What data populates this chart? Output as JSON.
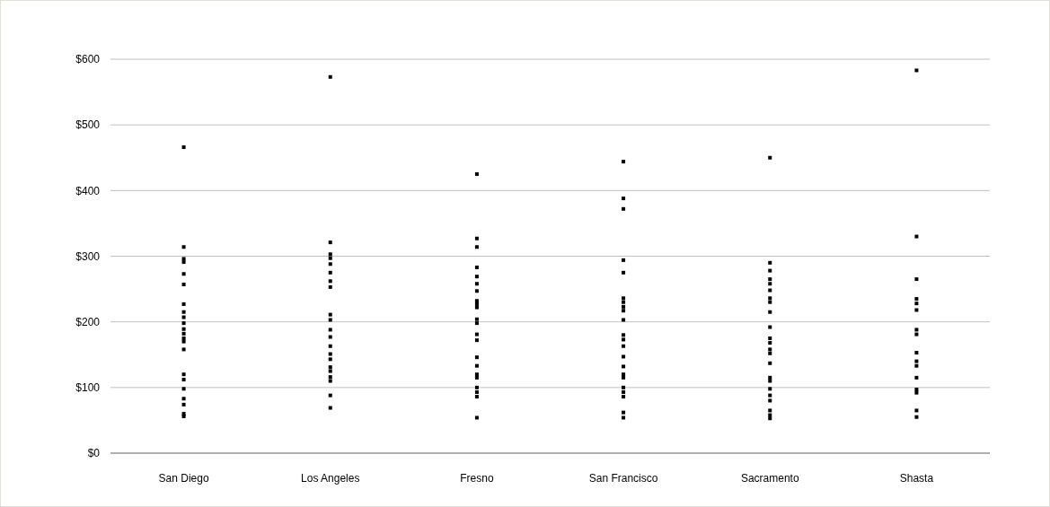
{
  "chart_data": {
    "type": "scatter",
    "categories": [
      "San Diego",
      "Los Angeles",
      "Fresno",
      "San Francisco",
      "Sacramento",
      "Shasta"
    ],
    "series": [
      {
        "color": "#000000",
        "x": [
          "San Diego",
          "San Diego",
          "San Diego",
          "San Diego",
          "San Diego",
          "San Diego",
          "San Diego",
          "San Diego",
          "San Diego",
          "San Diego",
          "San Diego",
          "San Diego",
          "San Diego",
          "San Diego",
          "San Diego",
          "San Diego",
          "San Diego",
          "San Diego",
          "San Diego",
          "San Diego",
          "San Diego",
          "San Diego",
          "Los Angeles",
          "Los Angeles",
          "Los Angeles",
          "Los Angeles",
          "Los Angeles",
          "Los Angeles",
          "Los Angeles",
          "Los Angeles",
          "Los Angeles",
          "Los Angeles",
          "Los Angeles",
          "Los Angeles",
          "Los Angeles",
          "Los Angeles",
          "Los Angeles",
          "Los Angeles",
          "Los Angeles",
          "Los Angeles",
          "Los Angeles",
          "Los Angeles",
          "Los Angeles",
          "Fresno",
          "Fresno",
          "Fresno",
          "Fresno",
          "Fresno",
          "Fresno",
          "Fresno",
          "Fresno",
          "Fresno",
          "Fresno",
          "Fresno",
          "Fresno",
          "Fresno",
          "Fresno",
          "Fresno",
          "Fresno",
          "Fresno",
          "Fresno",
          "Fresno",
          "Fresno",
          "Fresno",
          "Fresno",
          "San Francisco",
          "San Francisco",
          "San Francisco",
          "San Francisco",
          "San Francisco",
          "San Francisco",
          "San Francisco",
          "San Francisco",
          "San Francisco",
          "San Francisco",
          "San Francisco",
          "San Francisco",
          "San Francisco",
          "San Francisco",
          "San Francisco",
          "San Francisco",
          "San Francisco",
          "San Francisco",
          "San Francisco",
          "San Francisco",
          "San Francisco",
          "San Francisco",
          "Sacramento",
          "Sacramento",
          "Sacramento",
          "Sacramento",
          "Sacramento",
          "Sacramento",
          "Sacramento",
          "Sacramento",
          "Sacramento",
          "Sacramento",
          "Sacramento",
          "Sacramento",
          "Sacramento",
          "Sacramento",
          "Sacramento",
          "Sacramento",
          "Sacramento",
          "Sacramento",
          "Sacramento",
          "Sacramento",
          "Sacramento",
          "Sacramento",
          "Sacramento",
          "Shasta",
          "Shasta",
          "Shasta",
          "Shasta",
          "Shasta",
          "Shasta",
          "Shasta",
          "Shasta",
          "Shasta",
          "Shasta",
          "Shasta",
          "Shasta",
          "Shasta",
          "Shasta",
          "Shasta",
          "Shasta"
        ],
        "values": [
          466,
          314,
          296,
          291,
          273,
          257,
          227,
          215,
          207,
          198,
          189,
          182,
          175,
          170,
          158,
          120,
          112,
          98,
          83,
          74,
          60,
          56,
          573,
          321,
          303,
          297,
          288,
          275,
          262,
          253,
          211,
          203,
          188,
          177,
          163,
          151,
          143,
          131,
          125,
          116,
          110,
          88,
          69,
          425,
          327,
          314,
          283,
          269,
          258,
          247,
          232,
          227,
          222,
          204,
          198,
          181,
          172,
          146,
          133,
          120,
          115,
          100,
          93,
          86,
          54,
          444,
          388,
          372,
          294,
          275,
          236,
          230,
          223,
          217,
          203,
          180,
          173,
          163,
          147,
          132,
          120,
          115,
          100,
          93,
          86,
          62,
          54,
          450,
          290,
          278,
          265,
          258,
          248,
          236,
          230,
          215,
          192,
          175,
          168,
          158,
          152,
          137,
          115,
          110,
          98,
          88,
          80,
          65,
          58,
          53,
          583,
          330,
          265,
          235,
          228,
          218,
          188,
          181,
          153,
          140,
          133,
          115,
          97,
          92,
          65,
          55
        ]
      }
    ],
    "ylim": [
      0,
      600
    ],
    "yticks": [
      {
        "value": 0,
        "label": "$0"
      },
      {
        "value": 100,
        "label": "$100"
      },
      {
        "value": 200,
        "label": "$200"
      },
      {
        "value": 300,
        "label": "$300"
      },
      {
        "value": 400,
        "label": "$400"
      },
      {
        "value": 500,
        "label": "$500"
      },
      {
        "value": 600,
        "label": "$600"
      }
    ],
    "grid": "y",
    "marker": "square"
  }
}
